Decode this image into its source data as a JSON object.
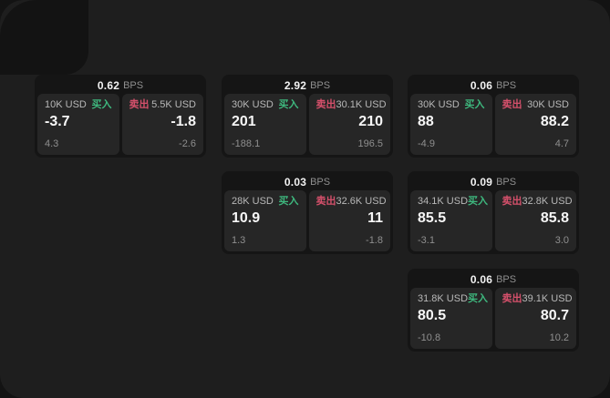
{
  "colors": {
    "page_bg": "#131313",
    "panel_bg": "#1e1e1e",
    "card_bg": "#151515",
    "tile_bg": "#262626",
    "text_primary": "#f2f2f2",
    "text_secondary": "#8f8f8f",
    "text_label": "#b8b8b8",
    "buy_green": "#3eb87e",
    "sell_red": "#d5506b"
  },
  "labels": {
    "bps_unit": "BPS",
    "buy": "买入",
    "sell": "卖出"
  },
  "cards": [
    {
      "col": 0,
      "row": 0,
      "bps_value": "0.62",
      "buy": {
        "amount": "10K USD",
        "side_label": "买入",
        "value": "-3.7",
        "sub_value": "4.3"
      },
      "sell": {
        "amount": "5.5K USD",
        "side_label": "卖出",
        "value": "-1.8",
        "sub_value": "-2.6"
      }
    },
    {
      "col": 1,
      "row": 0,
      "bps_value": "2.92",
      "buy": {
        "amount": "30K USD",
        "side_label": "买入",
        "value": "201",
        "sub_value": "-188.1"
      },
      "sell": {
        "amount": "30.1K USD",
        "side_label": "卖出",
        "value": "210",
        "sub_value": "196.5"
      }
    },
    {
      "col": 2,
      "row": 0,
      "bps_value": "0.06",
      "buy": {
        "amount": "30K USD",
        "side_label": "买入",
        "value": "88",
        "sub_value": "-4.9"
      },
      "sell": {
        "amount": "30K USD",
        "side_label": "卖出",
        "value": "88.2",
        "sub_value": "4.7"
      }
    },
    {
      "col": 1,
      "row": 1,
      "bps_value": "0.03",
      "buy": {
        "amount": "28K USD",
        "side_label": "买入",
        "value": "10.9",
        "sub_value": "1.3"
      },
      "sell": {
        "amount": "32.6K USD",
        "side_label": "卖出",
        "value": "11",
        "sub_value": "-1.8"
      }
    },
    {
      "col": 2,
      "row": 1,
      "bps_value": "0.09",
      "buy": {
        "amount": "34.1K USD",
        "side_label": "买入",
        "value": "85.5",
        "sub_value": "-3.1"
      },
      "sell": {
        "amount": "32.8K USD",
        "side_label": "卖出",
        "value": "85.8",
        "sub_value": "3.0"
      }
    },
    {
      "col": 2,
      "row": 2,
      "bps_value": "0.06",
      "buy": {
        "amount": "31.8K USD",
        "side_label": "买入",
        "value": "80.5",
        "sub_value": "-10.8"
      },
      "sell": {
        "amount": "39.1K USD",
        "side_label": "卖出",
        "value": "80.7",
        "sub_value": "10.2"
      }
    }
  ]
}
